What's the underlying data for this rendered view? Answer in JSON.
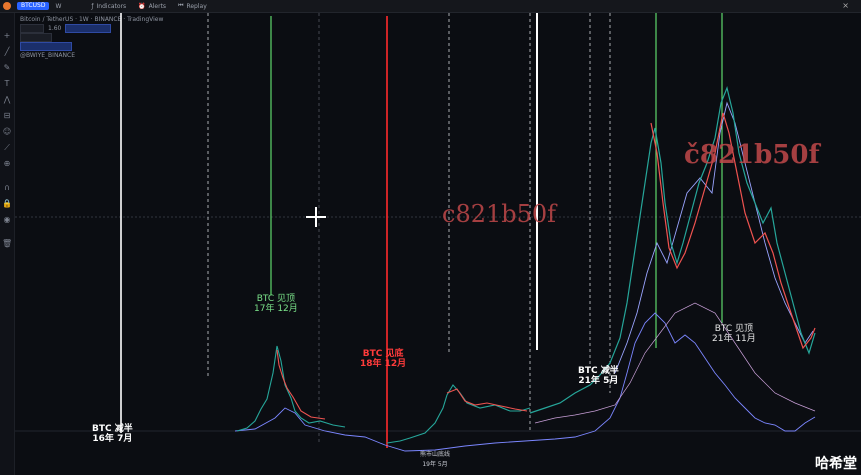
{
  "topbar": {
    "symbol_pill": "BTCUSD",
    "interval": "W",
    "indicators": "Indicators",
    "alerts": "Alerts",
    "replay": "Replay",
    "close": "×"
  },
  "legend": {
    "line1": "Bitcoin / TetherUS · 1W · BINANCE · TradingView",
    "line2_value": "1.60",
    "line4": "@BWIYE_BINANCE"
  },
  "labels": {
    "halving": {
      "line1": "BTC  减半",
      "line2": "16年  7月"
    },
    "top_2017": {
      "line1": "BTC  见顶",
      "line2": "17年  12月"
    },
    "bottom_2018": {
      "line1": "BTC  见底",
      "line2": "18年  12月"
    },
    "bear_low": {
      "line1": "熊市山底线",
      "line2": "19年 5月"
    },
    "halving_2021": {
      "line1": "BTC  减半",
      "line2": "21年  5月"
    },
    "top_2021": {
      "line1": "BTC  见顶",
      "line2": "21年  11月"
    }
  },
  "watermarks": {
    "center": "c821b50f",
    "right": "č821b5𝟎f"
  },
  "corner_text": "哈希堂",
  "colors": {
    "bg": "#0b0d12",
    "green_line": "#5fd86b",
    "red_line": "#ff2b2b",
    "white_line": "#ffffff",
    "candle_up": "#26a69a",
    "candle_down": "#ef5350",
    "blue_series": "#7b86ff"
  },
  "icons": {
    "tools": [
      "crosshair-icon",
      "trendline-icon",
      "brush-icon",
      "text-icon",
      "pattern-icon",
      "measure-icon",
      "zoom-icon",
      "magnet-icon",
      "lock-icon",
      "eye-icon",
      "trash-icon"
    ]
  }
}
